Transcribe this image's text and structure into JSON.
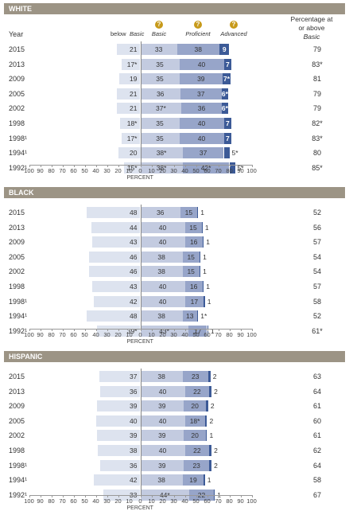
{
  "header": {
    "year": "Year",
    "below_basic_prefix": "below",
    "below_basic": "Basic",
    "basic": "Basic",
    "proficient": "Proficient",
    "advanced": "Advanced",
    "pct_line1": "Percentage at",
    "pct_line2": "or above",
    "pct_line3": "Basic",
    "help_glyph": "?"
  },
  "axis_title": "PERCENT",
  "ticks": [
    "100",
    "90",
    "80",
    "70",
    "60",
    "50",
    "40",
    "30",
    "20",
    "10",
    "0",
    "10",
    "20",
    "30",
    "40",
    "50",
    "60",
    "70",
    "80",
    "90",
    "100"
  ],
  "colors": {
    "below": "#dde3ef",
    "basic": "#c3cbe0",
    "proficient": "#97a5c9",
    "advanced": "#3c5a97",
    "header": "#9c9485"
  },
  "chart_data": [
    {
      "type": "bar",
      "title": "WHITE",
      "categories": [
        "2015",
        "2013",
        "2009",
        "2005",
        "2002",
        "1998",
        "1998¹",
        "1994¹",
        "1992¹"
      ],
      "series": [
        {
          "name": "below Basic",
          "values": [
            21,
            17,
            19,
            21,
            21,
            18,
            17,
            20,
            15
          ],
          "labels": [
            "21",
            "17*",
            "19",
            "21",
            "21",
            "18*",
            "17*",
            "20",
            "15*"
          ]
        },
        {
          "name": "Basic",
          "values": [
            33,
            35,
            35,
            36,
            37,
            35,
            35,
            38,
            38
          ],
          "labels": [
            "33",
            "35",
            "35",
            "36",
            "37*",
            "35",
            "35",
            "38*",
            "38*"
          ]
        },
        {
          "name": "Proficient",
          "values": [
            38,
            40,
            39,
            37,
            36,
            40,
            40,
            37,
            42
          ],
          "labels": [
            "38",
            "40",
            "39",
            "37",
            "36",
            "40",
            "40",
            "37",
            "42*"
          ]
        },
        {
          "name": "Advanced",
          "values": [
            9,
            7,
            7,
            6,
            6,
            7,
            7,
            5,
            5
          ],
          "labels": [
            "9",
            "7",
            "7*",
            "6*",
            "6*",
            "7",
            "7",
            "5*",
            "5*"
          ]
        }
      ],
      "pct_at_or_above_basic": [
        "79",
        "83*",
        "81",
        "79",
        "79",
        "82*",
        "83*",
        "80",
        "85*"
      ]
    },
    {
      "type": "bar",
      "title": "BLACK",
      "categories": [
        "2015",
        "2013",
        "2009",
        "2005",
        "2002",
        "1998",
        "1998¹",
        "1994¹",
        "1992¹"
      ],
      "series": [
        {
          "name": "below Basic",
          "values": [
            48,
            44,
            43,
            46,
            46,
            43,
            42,
            48,
            39
          ],
          "labels": [
            "48",
            "44",
            "43",
            "46",
            "46",
            "43",
            "42",
            "48",
            "39*"
          ]
        },
        {
          "name": "Basic",
          "values": [
            36,
            40,
            40,
            38,
            38,
            40,
            40,
            38,
            43
          ],
          "labels": [
            "36",
            "40",
            "40",
            "38",
            "38",
            "40",
            "40",
            "38",
            "43*"
          ]
        },
        {
          "name": "Proficient",
          "values": [
            15,
            15,
            16,
            15,
            15,
            16,
            17,
            13,
            17
          ],
          "labels": [
            "15",
            "15",
            "16",
            "15",
            "15",
            "16",
            "17",
            "13",
            "17"
          ]
        },
        {
          "name": "Advanced",
          "values": [
            1,
            1,
            1,
            1,
            1,
            1,
            1,
            1,
            1
          ],
          "labels": [
            "1",
            "1",
            "1",
            "1",
            "1",
            "1",
            "1",
            "1*",
            "1"
          ]
        }
      ],
      "pct_at_or_above_basic": [
        "52",
        "56",
        "57",
        "54",
        "54",
        "57",
        "58",
        "52",
        "61*"
      ]
    },
    {
      "type": "bar",
      "title": "HISPANIC",
      "categories": [
        "2015",
        "2013",
        "2009",
        "2005",
        "2002",
        "1998",
        "1998¹",
        "1994¹",
        "1992¹"
      ],
      "series": [
        {
          "name": "below Basic",
          "values": [
            37,
            36,
            39,
            40,
            39,
            38,
            36,
            42,
            33
          ],
          "labels": [
            "37",
            "36",
            "39",
            "40",
            "39",
            "38",
            "36",
            "42",
            "33"
          ]
        },
        {
          "name": "Basic",
          "values": [
            38,
            40,
            39,
            40,
            39,
            40,
            39,
            38,
            44
          ],
          "labels": [
            "38",
            "40",
            "39",
            "40",
            "39",
            "40",
            "39",
            "38",
            "44*"
          ]
        },
        {
          "name": "Proficient",
          "values": [
            23,
            22,
            20,
            18,
            20,
            22,
            23,
            19,
            22
          ],
          "labels": [
            "23",
            "22",
            "20",
            "18*",
            "20",
            "22",
            "23",
            "19",
            "22"
          ]
        },
        {
          "name": "Advanced",
          "values": [
            2,
            2,
            2,
            2,
            1,
            2,
            2,
            1,
            1
          ],
          "labels": [
            "2",
            "2",
            "2",
            "2",
            "1",
            "2",
            "2",
            "1",
            "1"
          ]
        }
      ],
      "pct_at_or_above_basic": [
        "63",
        "64",
        "61",
        "60",
        "61",
        "62",
        "64",
        "58",
        "67"
      ]
    }
  ]
}
